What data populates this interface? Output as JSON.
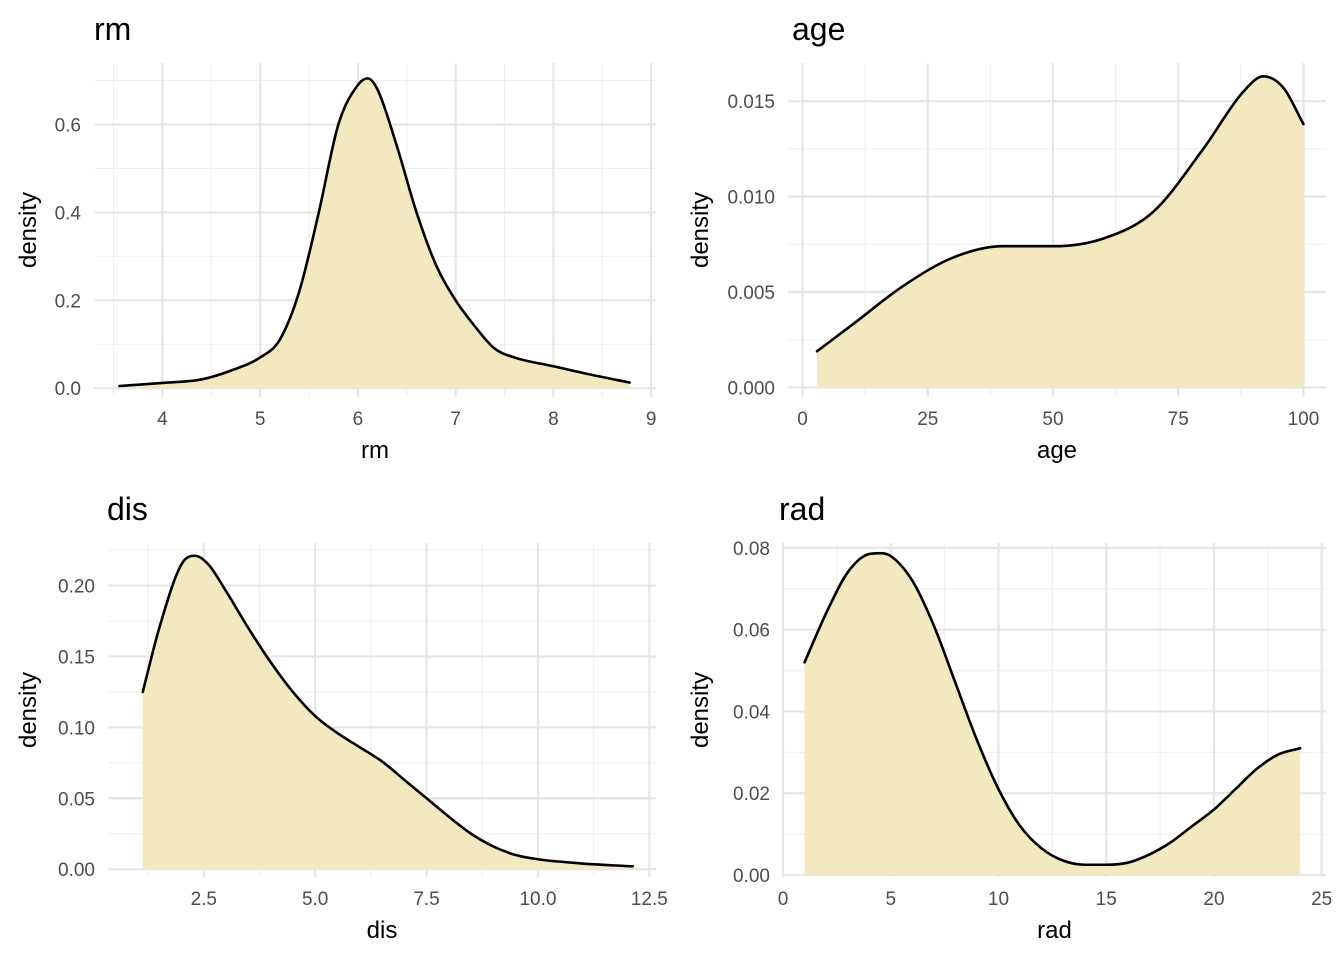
{
  "style": {
    "fill_color": "#f2e9c1",
    "line_color": "#000000",
    "grid_color": "#e6e6e6",
    "tick_color": "#4d4d4d"
  },
  "chart_data": [
    {
      "type": "area",
      "title": "rm",
      "xlabel": "rm",
      "ylabel": "density",
      "xlim": [
        3.3,
        9.05
      ],
      "ylim": [
        -0.02,
        0.74
      ],
      "xticks": [
        4,
        5,
        6,
        7,
        8,
        9
      ],
      "xtick_labels": [
        "4",
        "5",
        "6",
        "7",
        "8",
        "9"
      ],
      "yticks": [
        0.0,
        0.2,
        0.4,
        0.6
      ],
      "ytick_labels": [
        "0.0",
        "0.2",
        "0.4",
        "0.6"
      ],
      "grid": true,
      "series": [
        {
          "x": [
            3.56,
            4.0,
            4.4,
            4.7,
            5.0,
            5.2,
            5.4,
            5.6,
            5.8,
            6.0,
            6.1,
            6.2,
            6.4,
            6.6,
            6.8,
            7.0,
            7.2,
            7.4,
            7.6,
            8.0,
            8.4,
            8.78
          ],
          "y": [
            0.005,
            0.012,
            0.02,
            0.04,
            0.07,
            0.11,
            0.22,
            0.4,
            0.6,
            0.69,
            0.705,
            0.68,
            0.55,
            0.4,
            0.28,
            0.2,
            0.14,
            0.09,
            0.07,
            0.05,
            0.03,
            0.013
          ]
        }
      ]
    },
    {
      "type": "area",
      "title": "age",
      "xlabel": "age",
      "ylabel": "density",
      "xlim": [
        -2.9,
        104.5
      ],
      "ylim": [
        -0.0005,
        0.017
      ],
      "xticks": [
        0,
        25,
        50,
        75,
        100
      ],
      "xtick_labels": [
        "0",
        "25",
        "50",
        "75",
        "100"
      ],
      "yticks": [
        0.0,
        0.005,
        0.01,
        0.015
      ],
      "ytick_labels": [
        "0.000",
        "0.005",
        "0.010",
        "0.015"
      ],
      "grid": true,
      "series": [
        {
          "x": [
            2.9,
            10,
            20,
            30,
            40,
            50,
            60,
            70,
            80,
            88,
            92,
            96,
            100
          ],
          "y": [
            0.0019,
            0.0033,
            0.0053,
            0.0068,
            0.0074,
            0.0074,
            0.0078,
            0.0092,
            0.0125,
            0.0155,
            0.0163,
            0.0157,
            0.0138
          ]
        }
      ]
    },
    {
      "type": "area",
      "title": "dis",
      "xlabel": "dis",
      "ylabel": "density",
      "xlim": [
        0.35,
        12.65
      ],
      "ylim": [
        -0.0055,
        0.23
      ],
      "xticks": [
        2.5,
        5.0,
        7.5,
        10.0,
        12.5
      ],
      "xtick_labels": [
        "2.5",
        "5.0",
        "7.5",
        "10.0",
        "12.5"
      ],
      "yticks": [
        0.0,
        0.05,
        0.1,
        0.15,
        0.2
      ],
      "ytick_labels": [
        "0.00",
        "0.05",
        "0.10",
        "0.15",
        "0.20"
      ],
      "grid": true,
      "series": [
        {
          "x": [
            1.13,
            1.5,
            2.0,
            2.3,
            2.6,
            3.0,
            3.5,
            4.0,
            4.5,
            5.0,
            5.5,
            6.0,
            6.5,
            7.0,
            7.5,
            8.0,
            8.5,
            9.0,
            9.5,
            10.0,
            11.0,
            12.13
          ],
          "y": [
            0.125,
            0.17,
            0.215,
            0.221,
            0.215,
            0.196,
            0.17,
            0.146,
            0.125,
            0.108,
            0.096,
            0.086,
            0.076,
            0.063,
            0.05,
            0.037,
            0.025,
            0.016,
            0.01,
            0.007,
            0.004,
            0.002
          ]
        }
      ]
    },
    {
      "type": "area",
      "title": "rad",
      "xlabel": "rad",
      "ylabel": "density",
      "xlim": [
        0,
        25.2
      ],
      "ylim": [
        -0.0005,
        0.0812
      ],
      "xticks": [
        0,
        5,
        10,
        15,
        20,
        25
      ],
      "xtick_labels": [
        "0",
        "5",
        "10",
        "15",
        "20",
        "25"
      ],
      "yticks": [
        0.0,
        0.02,
        0.04,
        0.06,
        0.08
      ],
      "ytick_labels": [
        "0.00",
        "0.02",
        "0.04",
        "0.06",
        "0.08"
      ],
      "grid": true,
      "series": [
        {
          "x": [
            1,
            2,
            3,
            4,
            4.5,
            5,
            6,
            7,
            8,
            9,
            10,
            11,
            12,
            13,
            14,
            15,
            16,
            17,
            18,
            19,
            20,
            21,
            22,
            23,
            24
          ],
          "y": [
            0.052,
            0.064,
            0.074,
            0.0785,
            0.0787,
            0.078,
            0.072,
            0.061,
            0.047,
            0.033,
            0.021,
            0.012,
            0.0065,
            0.0035,
            0.0025,
            0.0025,
            0.003,
            0.005,
            0.008,
            0.012,
            0.016,
            0.021,
            0.026,
            0.0295,
            0.031
          ]
        }
      ]
    }
  ]
}
